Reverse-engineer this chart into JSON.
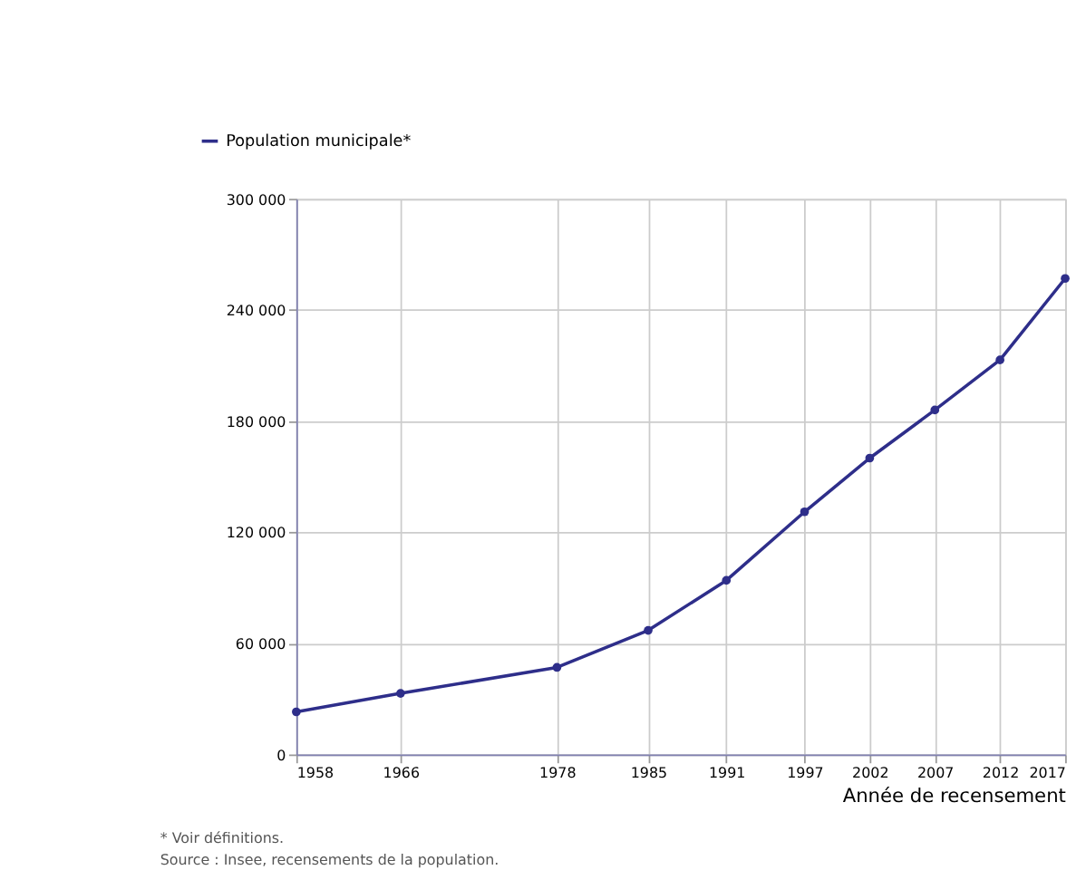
{
  "chart_data": {
    "type": "line",
    "xlabel": "Année de recensement",
    "x": [
      1958,
      1966,
      1978,
      1985,
      1991,
      1997,
      2002,
      2007,
      2012,
      2017
    ],
    "series": [
      {
        "name": "Population municipale*",
        "color": "#2e2e8a",
        "values": [
          23000,
          33000,
          47000,
          67000,
          94000,
          131000,
          160000,
          186000,
          213000,
          257000
        ]
      }
    ],
    "xlim": [
      1958,
      2017
    ],
    "xticks": [
      1958,
      1966,
      1978,
      1985,
      1991,
      1997,
      2002,
      2007,
      2012,
      2017
    ],
    "ylim": [
      0,
      300000
    ],
    "yticks": [
      {
        "value": 0,
        "label": "0"
      },
      {
        "value": 60000,
        "label": "60 000"
      },
      {
        "value": 120000,
        "label": "120 000"
      },
      {
        "value": 180000,
        "label": "180 000"
      },
      {
        "value": 240000,
        "label": "240 000"
      },
      {
        "value": 300000,
        "label": "300 000"
      }
    ],
    "grid": true,
    "legend": "top left",
    "marker": "circle",
    "line_style": "solid",
    "annotations": [
      "* Voir définitions.",
      "Source : Insee, recensements de la population."
    ]
  }
}
